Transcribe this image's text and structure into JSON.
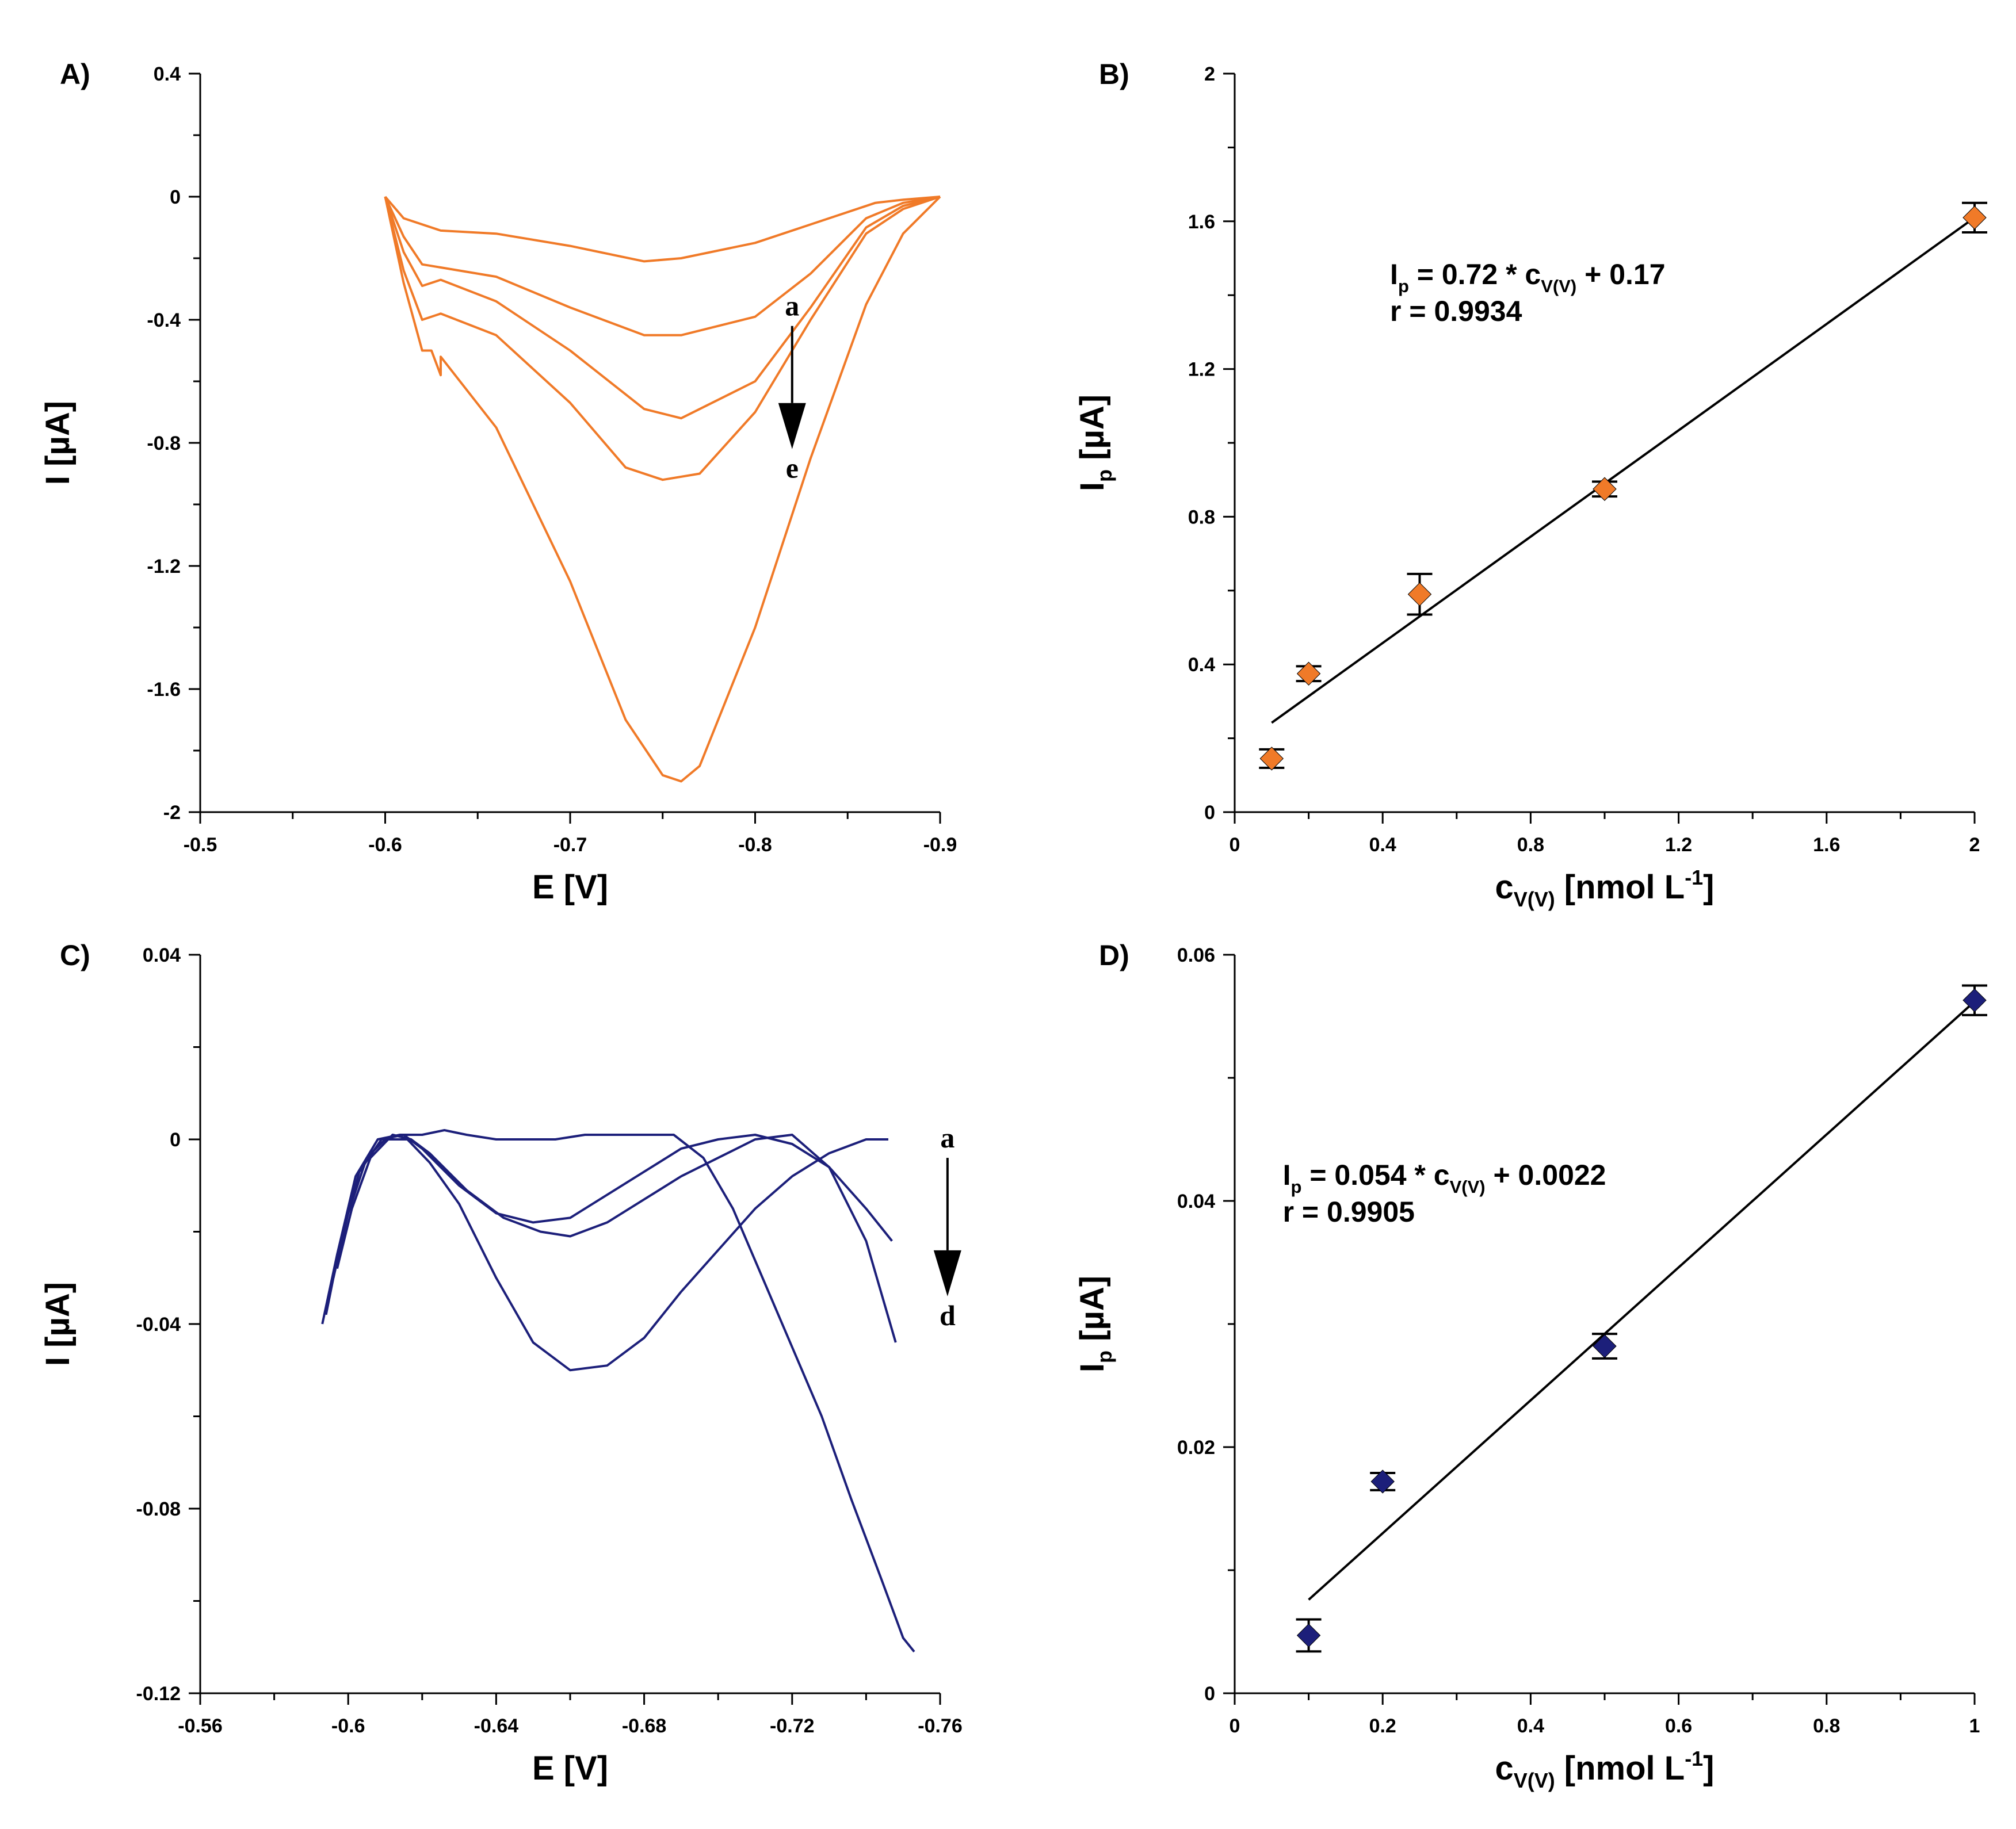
{
  "colors": {
    "orange": "#f07a28",
    "navy": "#1c1f7a",
    "black": "#000000"
  },
  "chart_data": [
    {
      "id": "A",
      "panel_label": "A)",
      "type": "line",
      "xlabel": "E [V]",
      "ylabel": "I [µA]",
      "xlim": [
        -0.5,
        -0.9
      ],
      "ylim": [
        -2,
        0.4
      ],
      "xticks": [
        -0.5,
        -0.6,
        -0.7,
        -0.8,
        -0.9
      ],
      "xtick_labels": [
        "-0.5",
        "-0.6",
        "-0.7",
        "-0.8",
        "-0.9"
      ],
      "yticks": [
        -2,
        -1.6,
        -1.2,
        -0.8,
        -0.4,
        0,
        0.4
      ],
      "ytick_labels": [
        "-2",
        "-1.6",
        "-1.2",
        "-0.8",
        "-0.4",
        "0",
        "0.4"
      ],
      "color": "#f07a28",
      "arrow": {
        "start_label": "a",
        "end_label": "e",
        "x": -0.82,
        "y_start": -0.42,
        "y_end": -0.82
      },
      "series": [
        {
          "x": [
            -0.6,
            -0.61,
            -0.63,
            -0.66,
            -0.7,
            -0.74,
            -0.76,
            -0.8,
            -0.84,
            -0.865,
            -0.88,
            -0.9
          ],
          "values": [
            0.0,
            -0.07,
            -0.11,
            -0.12,
            -0.16,
            -0.21,
            -0.2,
            -0.15,
            -0.07,
            -0.02,
            -0.01,
            0.0
          ]
        },
        {
          "x": [
            -0.6,
            -0.61,
            -0.62,
            -0.63,
            -0.66,
            -0.7,
            -0.74,
            -0.76,
            -0.8,
            -0.83,
            -0.86,
            -0.88,
            -0.9
          ],
          "values": [
            0.0,
            -0.13,
            -0.22,
            -0.23,
            -0.26,
            -0.36,
            -0.45,
            -0.45,
            -0.39,
            -0.25,
            -0.07,
            -0.02,
            0.0
          ]
        },
        {
          "x": [
            -0.6,
            -0.61,
            -0.62,
            -0.63,
            -0.66,
            -0.7,
            -0.74,
            -0.76,
            -0.8,
            -0.83,
            -0.86,
            -0.88,
            -0.9
          ],
          "values": [
            0.0,
            -0.18,
            -0.29,
            -0.27,
            -0.34,
            -0.5,
            -0.69,
            -0.72,
            -0.6,
            -0.36,
            -0.1,
            -0.03,
            0.0
          ]
        },
        {
          "x": [
            -0.6,
            -0.61,
            -0.62,
            -0.63,
            -0.66,
            -0.7,
            -0.73,
            -0.75,
            -0.77,
            -0.8,
            -0.83,
            -0.86,
            -0.88,
            -0.9
          ],
          "values": [
            0.0,
            -0.24,
            -0.4,
            -0.38,
            -0.45,
            -0.67,
            -0.88,
            -0.92,
            -0.9,
            -0.7,
            -0.4,
            -0.12,
            -0.04,
            0.0
          ]
        },
        {
          "x": [
            -0.6,
            -0.61,
            -0.62,
            -0.625,
            -0.63,
            -0.63,
            -0.66,
            -0.7,
            -0.73,
            -0.75,
            -0.76,
            -0.77,
            -0.8,
            -0.83,
            -0.86,
            -0.88,
            -0.9
          ],
          "values": [
            0.0,
            -0.28,
            -0.5,
            -0.5,
            -0.58,
            -0.52,
            -0.75,
            -1.25,
            -1.7,
            -1.88,
            -1.9,
            -1.85,
            -1.4,
            -0.85,
            -0.35,
            -0.12,
            0.0
          ]
        }
      ]
    },
    {
      "id": "B",
      "panel_label": "B)",
      "type": "scatter",
      "xlabel": "cV(V) [nmol L-1]",
      "ylabel": "Ip [µA]",
      "xlim": [
        0,
        2
      ],
      "ylim": [
        0,
        2
      ],
      "xticks": [
        0,
        0.4,
        0.8,
        1.2,
        1.6,
        2
      ],
      "xtick_labels": [
        "0",
        "0.4",
        "0.8",
        "1.2",
        "1.6",
        "2"
      ],
      "yticks": [
        0,
        0.4,
        0.8,
        1.2,
        1.6,
        2
      ],
      "ytick_labels": [
        "0",
        "0.4",
        "0.8",
        "1.2",
        "1.6",
        "2"
      ],
      "marker_color": "#f07a28",
      "x": [
        0.1,
        0.2,
        0.5,
        1.0,
        2.0
      ],
      "y": [
        0.145,
        0.375,
        0.59,
        0.875,
        1.61
      ],
      "err": [
        0.025,
        0.02,
        0.055,
        0.02,
        0.04
      ],
      "fit": {
        "x": [
          0.1,
          2.0
        ],
        "y": [
          0.242,
          1.61
        ]
      },
      "equation": "Ip = 0.72 * cV(V) + 0.17",
      "r_text": "r = 0.9934",
      "eq_pos": {
        "x": 0.42,
        "y": 1.43
      }
    },
    {
      "id": "C",
      "panel_label": "C)",
      "type": "line",
      "xlabel": "E [V]",
      "ylabel": "I [µA]",
      "xlim": [
        -0.56,
        -0.76
      ],
      "ylim": [
        -0.12,
        0.04
      ],
      "xticks": [
        -0.56,
        -0.6,
        -0.64,
        -0.68,
        -0.72,
        -0.76
      ],
      "xtick_labels": [
        "-0.56",
        "-0.6",
        "-0.64",
        "-0.68",
        "-0.72",
        "-0.76"
      ],
      "yticks": [
        -0.12,
        -0.08,
        -0.04,
        0,
        0.04
      ],
      "ytick_labels": [
        "-0.12",
        "-0.08",
        "-0.04",
        "0",
        "0.04"
      ],
      "color": "#1c1f7a",
      "arrow": {
        "start_label": "a",
        "end_label": "d",
        "x": -0.762,
        "y_start": -0.004,
        "y_end": -0.034
      },
      "series": [
        {
          "x": [
            -0.593,
            -0.597,
            -0.602,
            -0.608,
            -0.614,
            -0.62,
            -0.626,
            -0.632,
            -0.64,
            -0.648,
            -0.656,
            -0.664,
            -0.672,
            -0.68,
            -0.688,
            -0.696,
            -0.704,
            -0.712,
            -0.72,
            -0.728,
            -0.736,
            -0.744,
            -0.75,
            -0.753
          ],
          "values": [
            -0.04,
            -0.025,
            -0.008,
            0.0,
            0.001,
            0.001,
            0.002,
            0.001,
            0.0,
            0.0,
            0.0,
            0.001,
            0.001,
            0.001,
            0.001,
            -0.004,
            -0.015,
            -0.03,
            -0.045,
            -0.06,
            -0.078,
            -0.095,
            -0.108,
            -0.111
          ]
        },
        {
          "x": [
            -0.594,
            -0.598,
            -0.603,
            -0.609,
            -0.615,
            -0.62,
            -0.63,
            -0.64,
            -0.65,
            -0.66,
            -0.67,
            -0.68,
            -0.69,
            -0.7,
            -0.71,
            -0.72,
            -0.73,
            -0.74,
            -0.747
          ],
          "values": [
            -0.038,
            -0.022,
            -0.007,
            0.0,
            0.001,
            -0.002,
            -0.01,
            -0.016,
            -0.018,
            -0.017,
            -0.012,
            -0.007,
            -0.002,
            0.0,
            0.001,
            -0.001,
            -0.006,
            -0.015,
            -0.022
          ]
        },
        {
          "x": [
            -0.597,
            -0.601,
            -0.606,
            -0.612,
            -0.617,
            -0.622,
            -0.632,
            -0.642,
            -0.652,
            -0.66,
            -0.67,
            -0.68,
            -0.69,
            -0.7,
            -0.71,
            -0.72,
            -0.73,
            -0.74,
            -0.748
          ],
          "values": [
            -0.028,
            -0.015,
            -0.004,
            0.001,
            0.0,
            -0.003,
            -0.011,
            -0.017,
            -0.02,
            -0.021,
            -0.018,
            -0.013,
            -0.008,
            -0.004,
            0.0,
            0.001,
            -0.006,
            -0.022,
            -0.044
          ]
        },
        {
          "x": [
            -0.596,
            -0.6,
            -0.605,
            -0.61,
            -0.616,
            -0.622,
            -0.63,
            -0.64,
            -0.65,
            -0.66,
            -0.67,
            -0.68,
            -0.69,
            -0.7,
            -0.71,
            -0.72,
            -0.73,
            -0.74,
            -0.746
          ],
          "values": [
            -0.03,
            -0.016,
            -0.004,
            0.0,
            0.0,
            -0.005,
            -0.014,
            -0.03,
            -0.044,
            -0.05,
            -0.049,
            -0.043,
            -0.033,
            -0.024,
            -0.015,
            -0.008,
            -0.003,
            0.0,
            0.0
          ]
        }
      ]
    },
    {
      "id": "D",
      "panel_label": "D)",
      "type": "scatter",
      "xlabel": "cV(V) [nmol L-1]",
      "ylabel": "Ip [µA]",
      "xlim": [
        0,
        1
      ],
      "ylim": [
        0,
        0.06
      ],
      "xticks": [
        0,
        0.2,
        0.4,
        0.6,
        0.8,
        1
      ],
      "xtick_labels": [
        "0",
        "0.2",
        "0.4",
        "0.6",
        "0.8",
        "1"
      ],
      "yticks": [
        0,
        0.02,
        0.04,
        0.06
      ],
      "ytick_labels": [
        "0",
        "0.02",
        "0.04",
        "0.06"
      ],
      "marker_color": "#1c1f7a",
      "x": [
        0.1,
        0.2,
        0.5,
        1.0
      ],
      "y": [
        0.0047,
        0.0172,
        0.0282,
        0.0563
      ],
      "err": [
        0.0013,
        0.0007,
        0.001,
        0.0012
      ],
      "fit": {
        "x": [
          0.1,
          1.0
        ],
        "y": [
          0.0076,
          0.0562
        ]
      },
      "equation": "Ip = 0.054 * cV(V) + 0.0022",
      "r_text": "r = 0.9905",
      "eq_pos": {
        "x": 0.065,
        "y": 0.0413
      }
    }
  ]
}
